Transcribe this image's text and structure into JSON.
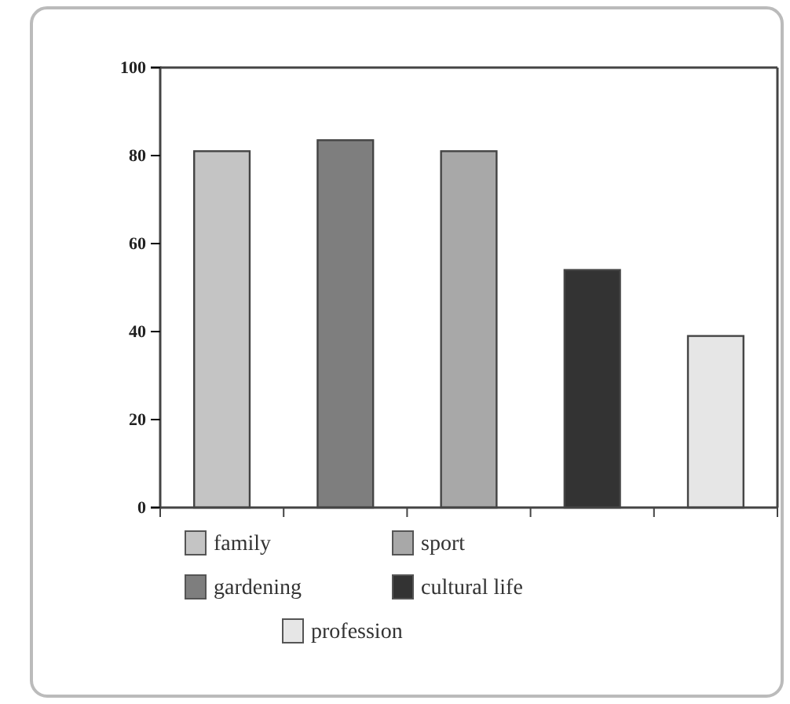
{
  "chart_data": {
    "type": "bar",
    "categories": [
      null
    ],
    "series": [
      {
        "name": "family",
        "color": "#c4c4c4",
        "values": [
          81
        ]
      },
      {
        "name": "gardening",
        "color": "#7e7e7e",
        "values": [
          83.5
        ]
      },
      {
        "name": "sport",
        "color": "#a8a8a8",
        "values": [
          81
        ]
      },
      {
        "name": "cultural life",
        "color": "#333333",
        "values": [
          54
        ]
      },
      {
        "name": "profession",
        "color": "#e6e6e6",
        "values": [
          39
        ]
      }
    ],
    "ylim": [
      0,
      100
    ],
    "yticks": [
      0,
      20,
      40,
      60,
      80,
      100
    ],
    "legend": "bottom",
    "grid": false
  }
}
